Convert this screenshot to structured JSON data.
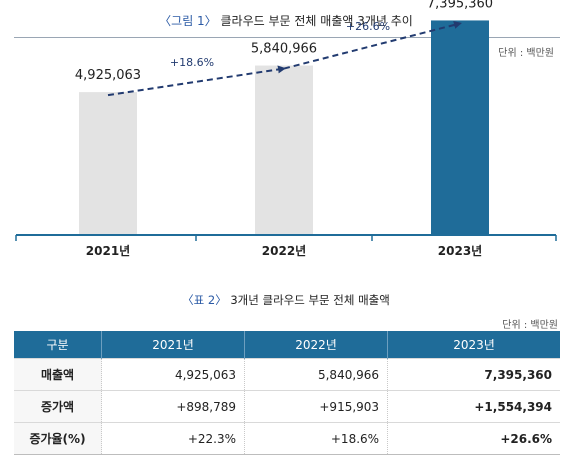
{
  "figure": {
    "label": "〈그림 1〉",
    "title": "클라우드 부문 전체 매출액 3개년 추이",
    "unit": "단위 : 백만원"
  },
  "chart_data": {
    "type": "bar",
    "categories": [
      "2021년",
      "2022년",
      "2023년"
    ],
    "values": [
      4925063,
      5840966,
      7395360
    ],
    "value_labels": [
      "4,925,063",
      "5,840,966",
      "7,395,360"
    ],
    "growth_labels": [
      "+18.6%",
      "+26.6%"
    ],
    "ylim": [
      0,
      8100000
    ],
    "colors": {
      "past": "#e3e3e3",
      "current": "#1f6c99",
      "trend": "#223b70",
      "axis": "#1f6c99"
    },
    "highlight_index": 2
  },
  "table": {
    "label": "〈표 2〉",
    "title": "3개년 클라우드 부문 전체 매출액",
    "unit": "단위 : 백만원",
    "headers": [
      "구분",
      "2021년",
      "2022년",
      "2023년"
    ],
    "rows": [
      [
        "매출액",
        "4,925,063",
        "5,840,966",
        "7,395,360"
      ],
      [
        "증가액",
        "+898,789",
        "+915,903",
        "+1,554,394"
      ],
      [
        "증가율(%)",
        "+22.3%",
        "+18.6%",
        "+26.6%"
      ]
    ]
  }
}
